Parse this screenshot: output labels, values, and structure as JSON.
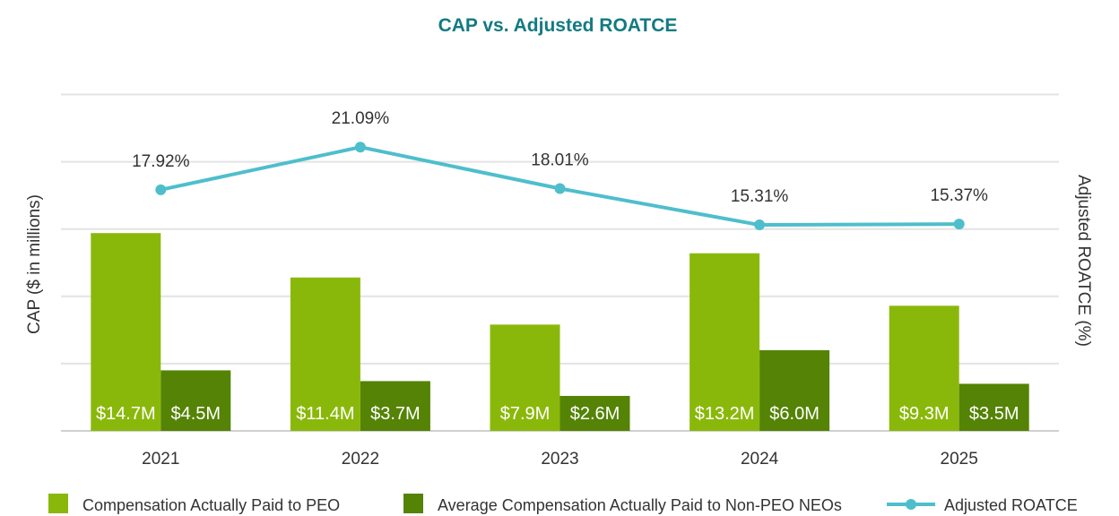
{
  "chart_data": {
    "type": "bar",
    "title": "CAP vs. Adjusted ROATCE",
    "ylabel": "CAP ($ in millions)",
    "y2label": "Adjusted ROATCE (%)",
    "categories": [
      "2021",
      "2022",
      "2023",
      "2024",
      "2025"
    ],
    "series": [
      {
        "name": "Compensation Actually Paid to PEO",
        "kind": "bar",
        "axis": "left",
        "values": [
          14.7,
          11.4,
          7.9,
          13.2,
          9.3
        ],
        "labels": [
          "$14.7M",
          "$11.4M",
          "$7.9M",
          "$13.2M",
          "$9.3M"
        ]
      },
      {
        "name": "Average Compensation Actually Paid to Non-PEO NEOs",
        "kind": "bar",
        "axis": "left",
        "values": [
          4.5,
          3.7,
          2.6,
          6.0,
          3.5
        ],
        "labels": [
          "$4.5M",
          "$3.7M",
          "$2.6M",
          "$6.0M",
          "$3.5M"
        ]
      },
      {
        "name": "Adjusted ROATCE",
        "kind": "line",
        "axis": "right",
        "values": [
          17.92,
          21.09,
          18.01,
          15.31,
          15.37
        ],
        "labels": [
          "17.92%",
          "21.09%",
          "18.01%",
          "15.31%",
          "15.37%"
        ]
      }
    ],
    "ylim": [
      0,
      25
    ],
    "y2lim": [
      0,
      25
    ],
    "grid": true,
    "legend_position": "bottom",
    "colors": {
      "title": "#137a82",
      "peo_bar": "#8ab80a",
      "neo_bar": "#548305",
      "line": "#4ebecc",
      "grid": "#e3e3e3",
      "text": "#333333",
      "bar_label": "#ffffff"
    }
  }
}
